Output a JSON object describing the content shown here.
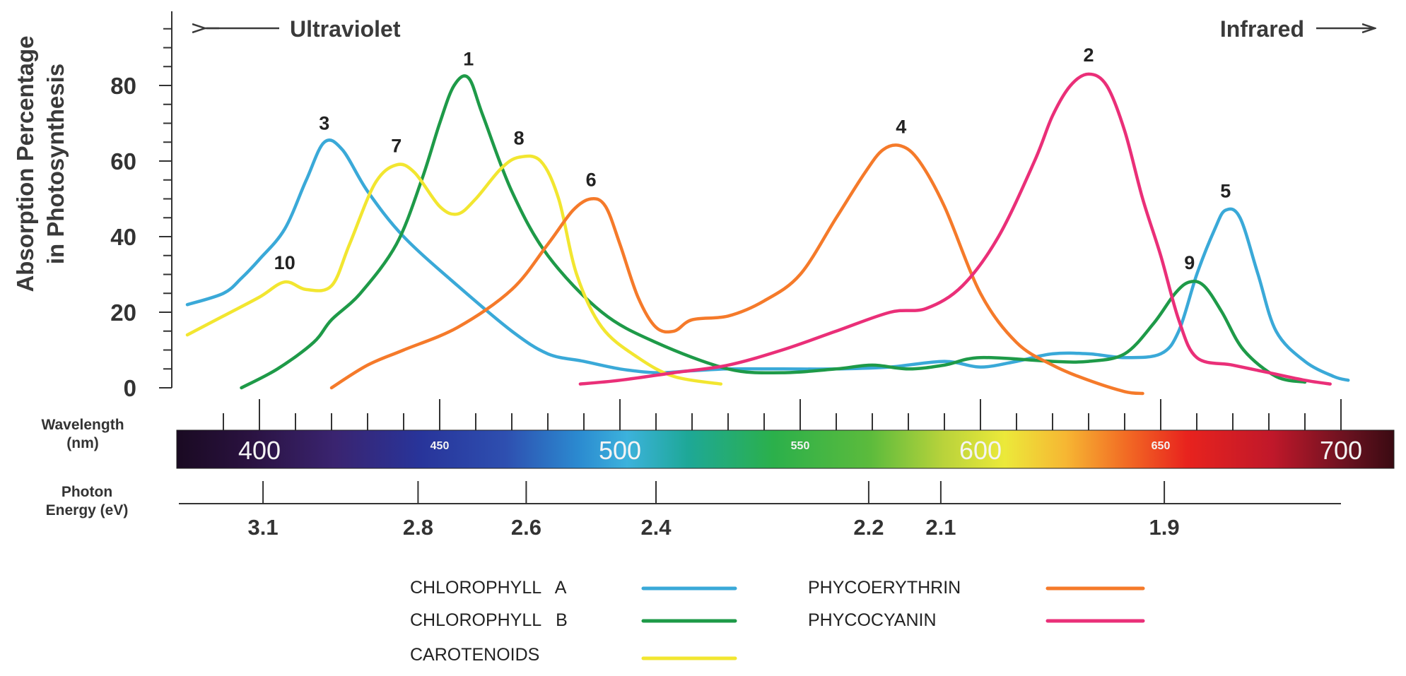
{
  "chart_data": {
    "type": "line",
    "ylabel_line1": "Absorption Percentage",
    "ylabel_line2": "in Photosynthesis",
    "ylim": [
      0,
      100
    ],
    "y_ticks": [
      0,
      20,
      40,
      60,
      80
    ],
    "xlim": [
      380,
      705
    ],
    "x_tick_labels": [
      {
        "value": 400,
        "label": "400"
      },
      {
        "value": 450,
        "label": "450"
      },
      {
        "value": 500,
        "label": "500"
      },
      {
        "value": 550,
        "label": "550"
      },
      {
        "value": 600,
        "label": "600"
      },
      {
        "value": 650,
        "label": "650"
      },
      {
        "value": 700,
        "label": "700"
      }
    ],
    "uv_label": "Ultraviolet",
    "ir_label": "Infrared",
    "wavelength_label_line1": "Wavelength",
    "wavelength_label_line2": "(nm)",
    "energy_label_line1": "Photon",
    "energy_label_line2": "Energy (eV)",
    "energy_ticks": [
      {
        "label": "3.1",
        "nm": 401
      },
      {
        "label": "2.8",
        "nm": 444
      },
      {
        "label": "2.6",
        "nm": 474
      },
      {
        "label": "2.4",
        "nm": 510
      },
      {
        "label": "2.2",
        "nm": 569
      },
      {
        "label": "2.1",
        "nm": 589
      },
      {
        "label": "1.9",
        "nm": 651
      }
    ],
    "series": [
      {
        "name": "CHLOROPHYLL A",
        "color": "#3aa9d8",
        "points": [
          [
            380,
            22
          ],
          [
            390,
            25
          ],
          [
            395,
            29
          ],
          [
            400,
            34
          ],
          [
            407,
            42
          ],
          [
            413,
            55
          ],
          [
            418,
            65
          ],
          [
            423,
            63
          ],
          [
            430,
            52
          ],
          [
            440,
            40
          ],
          [
            455,
            27
          ],
          [
            470,
            15
          ],
          [
            480,
            9
          ],
          [
            490,
            7
          ],
          [
            500,
            5
          ],
          [
            510,
            4
          ],
          [
            520,
            4.5
          ],
          [
            530,
            5
          ],
          [
            545,
            5
          ],
          [
            560,
            5
          ],
          [
            575,
            5.5
          ],
          [
            590,
            7
          ],
          [
            600,
            5.5
          ],
          [
            610,
            7
          ],
          [
            620,
            9
          ],
          [
            630,
            9
          ],
          [
            640,
            8
          ],
          [
            650,
            9
          ],
          [
            655,
            15
          ],
          [
            660,
            30
          ],
          [
            665,
            42
          ],
          [
            668,
            47
          ],
          [
            672,
            45
          ],
          [
            677,
            30
          ],
          [
            682,
            15
          ],
          [
            690,
            7
          ],
          [
            698,
            3
          ],
          [
            702,
            2
          ]
        ]
      },
      {
        "name": "CHLOROPHYLL B",
        "color": "#1e9a48",
        "points": [
          [
            395,
            0
          ],
          [
            405,
            5
          ],
          [
            415,
            12
          ],
          [
            420,
            18
          ],
          [
            428,
            25
          ],
          [
            438,
            38
          ],
          [
            445,
            55
          ],
          [
            450,
            70
          ],
          [
            454,
            80
          ],
          [
            458,
            82
          ],
          [
            462,
            72
          ],
          [
            470,
            52
          ],
          [
            480,
            35
          ],
          [
            495,
            20
          ],
          [
            510,
            12
          ],
          [
            530,
            5
          ],
          [
            545,
            4
          ],
          [
            560,
            5
          ],
          [
            570,
            6
          ],
          [
            580,
            5
          ],
          [
            590,
            6
          ],
          [
            600,
            8
          ],
          [
            620,
            7
          ],
          [
            630,
            7
          ],
          [
            640,
            9
          ],
          [
            648,
            17
          ],
          [
            654,
            25
          ],
          [
            658,
            28
          ],
          [
            662,
            27
          ],
          [
            667,
            20
          ],
          [
            673,
            10
          ],
          [
            682,
            3
          ],
          [
            690,
            1.5
          ]
        ]
      },
      {
        "name": "CAROTENOIDS",
        "color": "#f2e630",
        "points": [
          [
            380,
            14
          ],
          [
            390,
            19
          ],
          [
            400,
            24
          ],
          [
            407,
            28
          ],
          [
            413,
            26
          ],
          [
            420,
            27
          ],
          [
            425,
            38
          ],
          [
            432,
            54
          ],
          [
            438,
            59
          ],
          [
            443,
            57
          ],
          [
            450,
            48
          ],
          [
            455,
            46
          ],
          [
            460,
            50
          ],
          [
            467,
            58
          ],
          [
            472,
            61
          ],
          [
            478,
            60
          ],
          [
            483,
            50
          ],
          [
            488,
            30
          ],
          [
            495,
            16
          ],
          [
            505,
            8
          ],
          [
            515,
            3
          ],
          [
            528,
            1
          ]
        ]
      },
      {
        "name": "PHYCOERYTHRIN",
        "color": "#f57a2a",
        "points": [
          [
            420,
            0
          ],
          [
            430,
            6
          ],
          [
            440,
            10
          ],
          [
            455,
            16
          ],
          [
            470,
            26
          ],
          [
            480,
            38
          ],
          [
            487,
            47
          ],
          [
            492,
            50
          ],
          [
            496,
            48
          ],
          [
            500,
            38
          ],
          [
            505,
            24
          ],
          [
            510,
            16
          ],
          [
            515,
            15
          ],
          [
            520,
            18
          ],
          [
            530,
            19
          ],
          [
            540,
            23
          ],
          [
            550,
            30
          ],
          [
            560,
            45
          ],
          [
            568,
            57
          ],
          [
            573,
            63
          ],
          [
            578,
            64
          ],
          [
            583,
            60
          ],
          [
            590,
            48
          ],
          [
            600,
            25
          ],
          [
            610,
            12
          ],
          [
            620,
            6
          ],
          [
            630,
            2
          ],
          [
            640,
            -1
          ],
          [
            645,
            -1.5
          ]
        ]
      },
      {
        "name": "PHYCOCYANIN",
        "color": "#ea2f78",
        "points": [
          [
            489,
            1
          ],
          [
            500,
            2
          ],
          [
            515,
            4
          ],
          [
            530,
            6
          ],
          [
            545,
            10
          ],
          [
            560,
            15
          ],
          [
            575,
            20
          ],
          [
            585,
            21
          ],
          [
            595,
            27
          ],
          [
            605,
            40
          ],
          [
            615,
            60
          ],
          [
            620,
            72
          ],
          [
            625,
            80
          ],
          [
            630,
            83
          ],
          [
            635,
            80
          ],
          [
            640,
            68
          ],
          [
            645,
            50
          ],
          [
            650,
            35
          ],
          [
            655,
            18
          ],
          [
            660,
            8
          ],
          [
            670,
            6
          ],
          [
            680,
            4
          ],
          [
            690,
            2
          ],
          [
            697,
            1
          ]
        ]
      }
    ],
    "peak_labels": [
      {
        "label": "1",
        "x": 458,
        "y": 82
      },
      {
        "label": "2",
        "x": 630,
        "y": 83
      },
      {
        "label": "3",
        "x": 418,
        "y": 65
      },
      {
        "label": "4",
        "x": 578,
        "y": 64
      },
      {
        "label": "5",
        "x": 668,
        "y": 47
      },
      {
        "label": "6",
        "x": 492,
        "y": 50
      },
      {
        "label": "7",
        "x": 438,
        "y": 59
      },
      {
        "label": "8",
        "x": 472,
        "y": 61
      },
      {
        "label": "9",
        "x": 658,
        "y": 28
      },
      {
        "label": "10",
        "x": 407,
        "y": 28
      }
    ],
    "legend": {
      "placement": "bottom",
      "entries": [
        {
          "name": "CHLOROPHYLL   A",
          "color": "#3aa9d8"
        },
        {
          "name": "CHLOROPHYLL   B",
          "color": "#1e9a48"
        },
        {
          "name": "CAROTENOIDS",
          "color": "#f2e630"
        },
        {
          "name": "PHYCOERYTHRIN",
          "color": "#f57a2a"
        },
        {
          "name": "PHYCOCYANIN",
          "color": "#ea2f78"
        }
      ]
    }
  }
}
